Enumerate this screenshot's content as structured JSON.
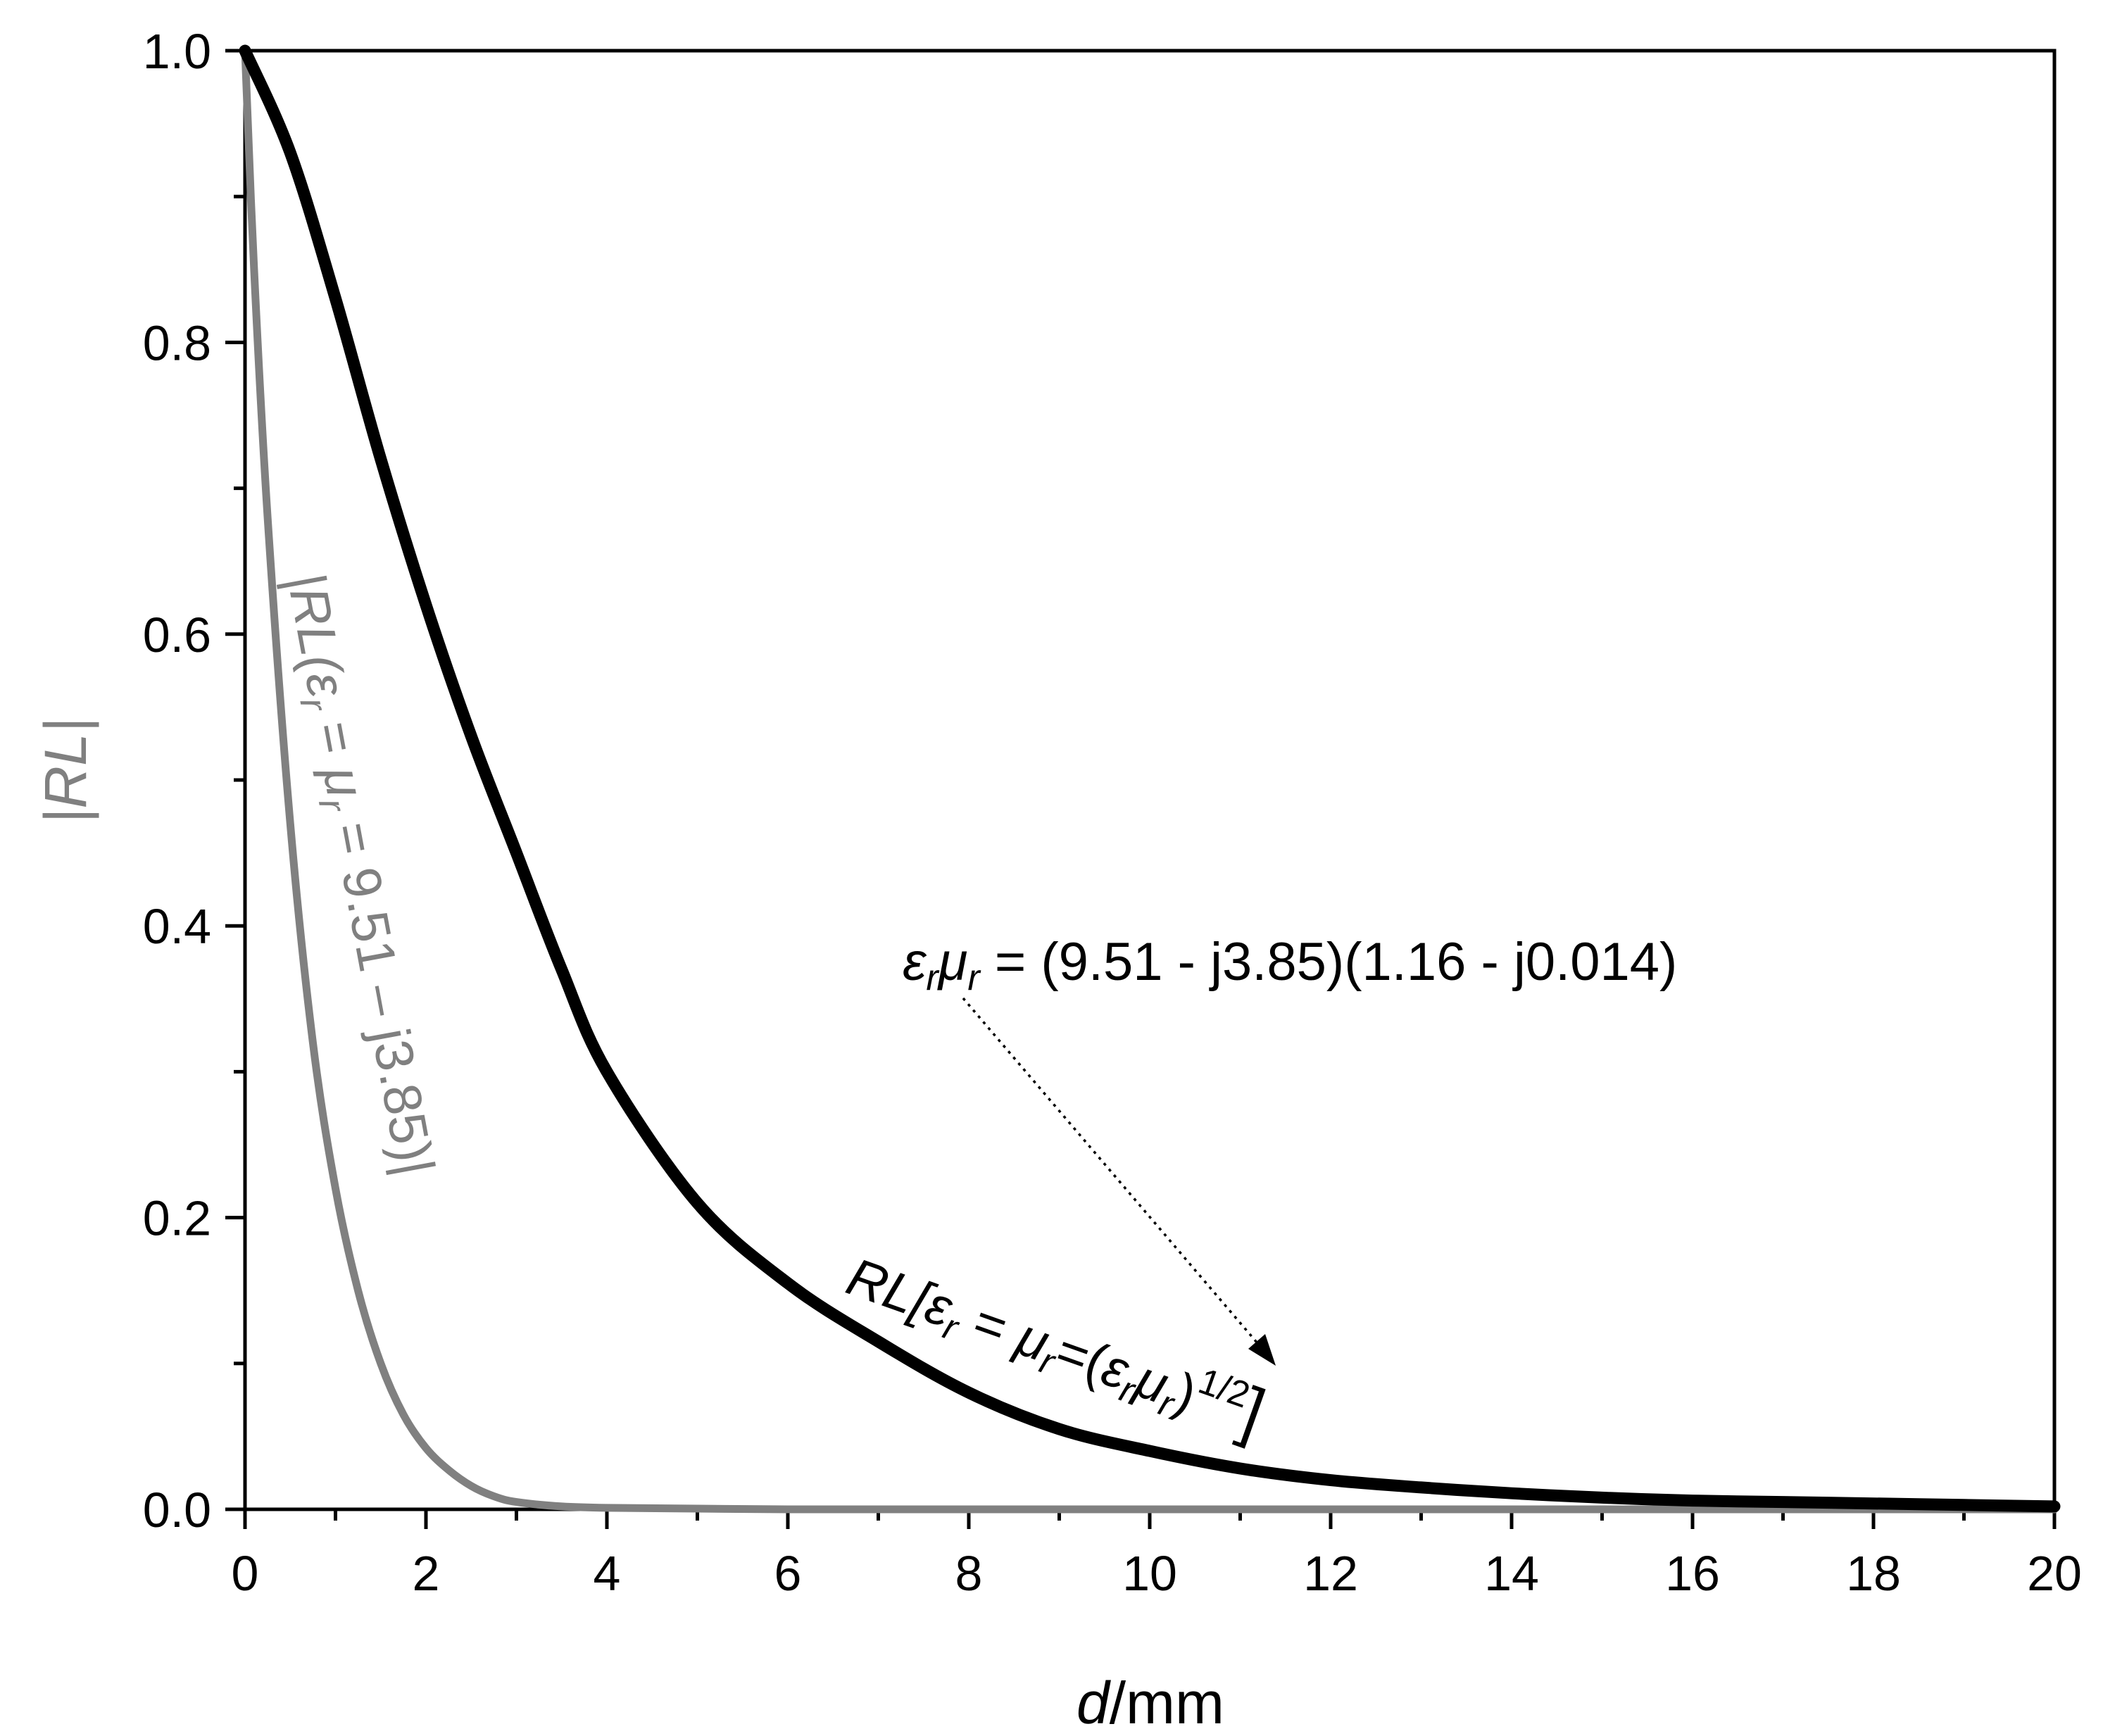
{
  "chart_data": {
    "type": "line",
    "xlabel": {
      "var": "d",
      "unit": "/mm"
    },
    "ylabel": "|RL|",
    "xlim": [
      0,
      20
    ],
    "ylim": [
      0,
      1.0
    ],
    "x_ticks": [
      "0",
      "2",
      "4",
      "6",
      "8",
      "10",
      "12",
      "14",
      "16",
      "18",
      "20"
    ],
    "y_ticks": [
      "0.0",
      "0.2",
      "0.4",
      "0.6",
      "0.8",
      "1.0"
    ],
    "grid": false,
    "colors": {
      "black_series": "#000000",
      "gray_series": "#808080",
      "axis": "#000000"
    },
    "series": [
      {
        "label": "RL[εr = μr=(εrμr)1/2]",
        "color": "#000000",
        "x": [
          0,
          0.5,
          1,
          1.5,
          2,
          2.5,
          3,
          3.5,
          4,
          5,
          6,
          7,
          8,
          9,
          10,
          11,
          12,
          13,
          14,
          15,
          16,
          17,
          18,
          19,
          20
        ],
        "y": [
          1.0,
          0.93,
          0.83,
          0.72,
          0.62,
          0.53,
          0.45,
          0.37,
          0.3,
          0.21,
          0.155,
          0.115,
          0.08,
          0.055,
          0.04,
          0.028,
          0.02,
          0.015,
          0.011,
          0.008,
          0.006,
          0.005,
          0.004,
          0.003,
          0.002
        ]
      },
      {
        "label": "|RL(εr = μr = 9.51 – j3.85)|",
        "color": "#808080",
        "x": [
          0,
          0.1,
          0.25,
          0.5,
          0.75,
          1.0,
          1.25,
          1.5,
          1.75,
          2.0,
          2.25,
          2.5,
          2.75,
          3.0,
          3.5,
          4,
          5,
          6,
          8,
          10,
          12,
          14,
          16,
          18,
          20
        ],
        "y": [
          1.0,
          0.85,
          0.68,
          0.47,
          0.32,
          0.22,
          0.15,
          0.1,
          0.065,
          0.042,
          0.027,
          0.016,
          0.009,
          0.005,
          0.002,
          0.001,
          0.0005,
          0,
          0,
          0,
          0,
          0,
          0,
          0,
          0
        ]
      }
    ],
    "annotations": {
      "product_formula": {
        "eps": "ε",
        "eps_sub": "r",
        "mu": "μ",
        "mu_sub": "r",
        "rest": " = (9.51 -  j3.85)(1.16 - j0.014)"
      },
      "black_curve_label": {
        "p1": "RL[",
        "eps": "ε",
        "sub1": "r",
        "p2": " = ",
        "mu": "μ",
        "sub2": "r",
        "p3": "=(",
        "eps2": "ε",
        "sub3": "r",
        "mu2": "μ",
        "sub4": "r",
        "p4": ")",
        "sup": "1/2",
        "p5": "]"
      },
      "gray_curve_label": {
        "p1": "|RL(",
        "eps": "ε",
        "sub1": "r",
        "p2": " = ",
        "mu": "μ",
        "sub2": "r",
        "p3": " = 9.51 – j3.85)|"
      }
    }
  }
}
